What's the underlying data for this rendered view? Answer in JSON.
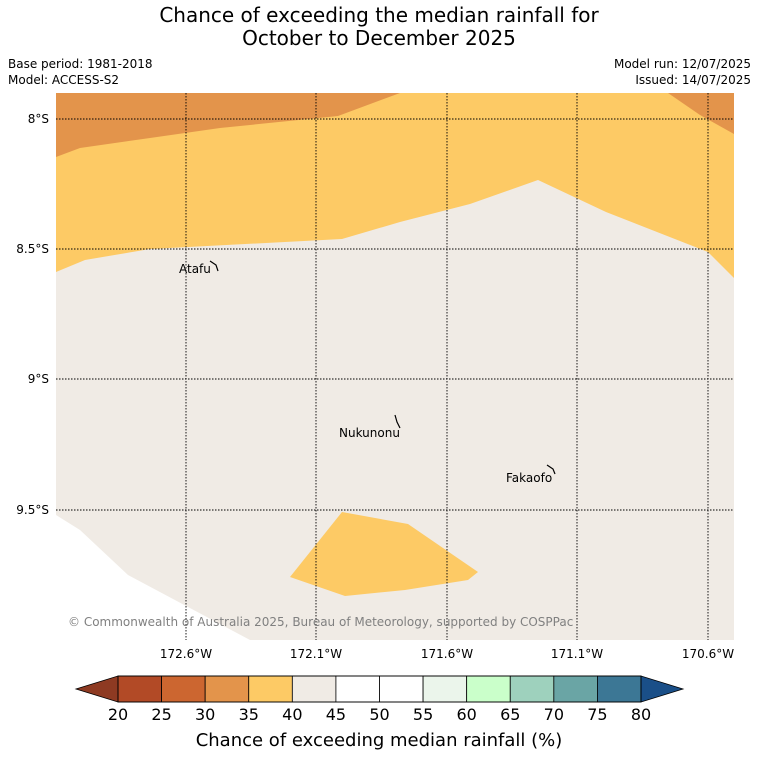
{
  "title_line1": "Chance of exceeding the median rainfall for",
  "title_line2": "October to December 2025",
  "base_period": "Base period: 1981-2018",
  "model": "Model: ACCESS-S2",
  "model_run": "Model run: 12/07/2025",
  "issued": "Issued: 14/07/2025",
  "copyright": "© Commonwealth of Australia 2025, Bureau of Meteorology, supported by COSPPac",
  "lat_labels": [
    "8°S",
    "8.5°S",
    "9°S",
    "9.5°S"
  ],
  "lon_labels": [
    "172.6°W",
    "172.1°W",
    "171.6°W",
    "171.1°W",
    "170.6°W"
  ],
  "places": {
    "atafu": "Atafu",
    "nukunonu": "Nukunonu",
    "fakaofo": "Fakaofo"
  },
  "colorbar": {
    "title": "Chance of exceeding median rainfall (%)",
    "ticks": [
      "20",
      "25",
      "30",
      "35",
      "40",
      "45",
      "50",
      "55",
      "60",
      "65",
      "70",
      "75",
      "80"
    ],
    "colors": [
      "#b24a26",
      "#cc6630",
      "#e3944b",
      "#fdca65",
      "#f0ebe5",
      "#ffffff",
      "#ffffff",
      "#ebf5eb",
      "#caffca",
      "#9ed1bd",
      "#6aa5a5",
      "#3c7795"
    ],
    "under_color": "#8e3a22",
    "over_color": "#1a4f88"
  },
  "map_colors": {
    "orange": "#e3944b",
    "yellow": "#fdca65",
    "neutral": "#f0ebe5"
  }
}
